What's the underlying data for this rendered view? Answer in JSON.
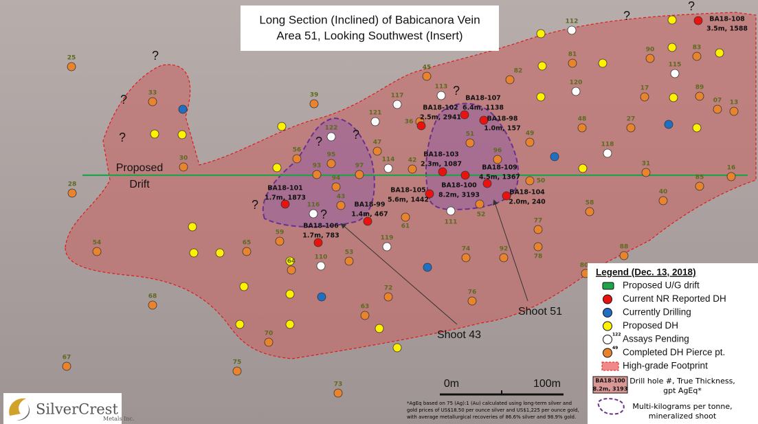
{
  "title": [
    "Long Section (Inclined) of Babicanora Vein",
    "Area 51, Looking Southwest (Insert)"
  ],
  "drift_label": [
    "Proposed",
    "Drift"
  ],
  "question_mark": "?",
  "completed_holes": [
    "25",
    "33",
    "39",
    "30",
    "28",
    "56",
    "93",
    "95",
    "97",
    "94",
    "43",
    "47",
    "42",
    "36",
    "51",
    "96",
    "61",
    "52",
    "49",
    "45",
    "82",
    "81",
    "90",
    "83",
    "17",
    "89",
    "07",
    "13",
    "48",
    "27",
    "31",
    "85",
    "16",
    "40",
    "58",
    "77",
    "78",
    "92",
    "74",
    "88",
    "80",
    "50",
    "54",
    "65",
    "59",
    "64",
    "53",
    "72",
    "63",
    "76",
    "68",
    "70",
    "67",
    "75",
    "73"
  ],
  "pending_holes": [
    "122",
    "121",
    "117",
    "113",
    "114",
    "116",
    "111",
    "119",
    "110",
    "112",
    "120",
    "118",
    "115"
  ],
  "reported_holes": [
    {
      "id": "BA18-108",
      "detail": "3.5m, 1588"
    },
    {
      "id": "BA18-107",
      "detail": "6.4m, 1138"
    },
    {
      "id": "BA18-102",
      "detail": "2.5m, 2941"
    },
    {
      "id": "BA18-98",
      "detail": "1.0m, 157"
    },
    {
      "id": "BA18-103",
      "detail": "2.3m, 1087"
    },
    {
      "id": "BA18-109",
      "detail": "4.5m, 1367"
    },
    {
      "id": "BA18-100",
      "detail": "8.2m, 3193"
    },
    {
      "id": "BA18-105",
      "detail": "5.6m, 1442"
    },
    {
      "id": "BA18-104",
      "detail": "2.0m, 240"
    },
    {
      "id": "BA18-99",
      "detail": "1.4m, 467"
    },
    {
      "id": "BA18-101",
      "detail": "1.7m, 1873"
    },
    {
      "id": "BA18-106",
      "detail": "1.7m, 783"
    }
  ],
  "shoots": [
    "Shoot 43",
    "Shoot 51"
  ],
  "scale": {
    "start": "0m",
    "end": "100m"
  },
  "legend": {
    "title": "Legend (Dec. 13, 2018)",
    "items": [
      {
        "label": "Proposed U/G drift",
        "color": "#1fa34a"
      },
      {
        "label": "Current NR Reported DH",
        "color": "#e8120f"
      },
      {
        "label": "Currently Drilling",
        "color": "#1f6fc2"
      },
      {
        "label": "Proposed DH",
        "color": "#fff200"
      },
      {
        "label": "Assays Pending",
        "color": "#ffffff",
        "superscript": "122"
      },
      {
        "label": "Completed DH Pierce pt.",
        "color": "#e8842d",
        "superscript": "49"
      },
      {
        "label": "High-grade Footprint",
        "color": "#f08a88"
      }
    ],
    "sample": {
      "id": "BA18-100",
      "detail": "8.2m, 3193",
      "text": [
        "Drill hole #, True Thickness,",
        "gpt AgEq*"
      ]
    },
    "shoot_text": [
      "Multi-kilograms per tonne,",
      "mineralized shoot"
    ]
  },
  "footnote": [
    "*AgEq based on 75 (Ag):1 (Au) calculated using long-term silver and",
    "gold prices of US$18.50 per ounce silver and US$1,225 per ounce gold,",
    "with average metallurgical recoveries of 86.6% silver and 98.9% gold."
  ],
  "logo": {
    "name": "SilverCrest",
    "sub": "Metals Inc."
  }
}
